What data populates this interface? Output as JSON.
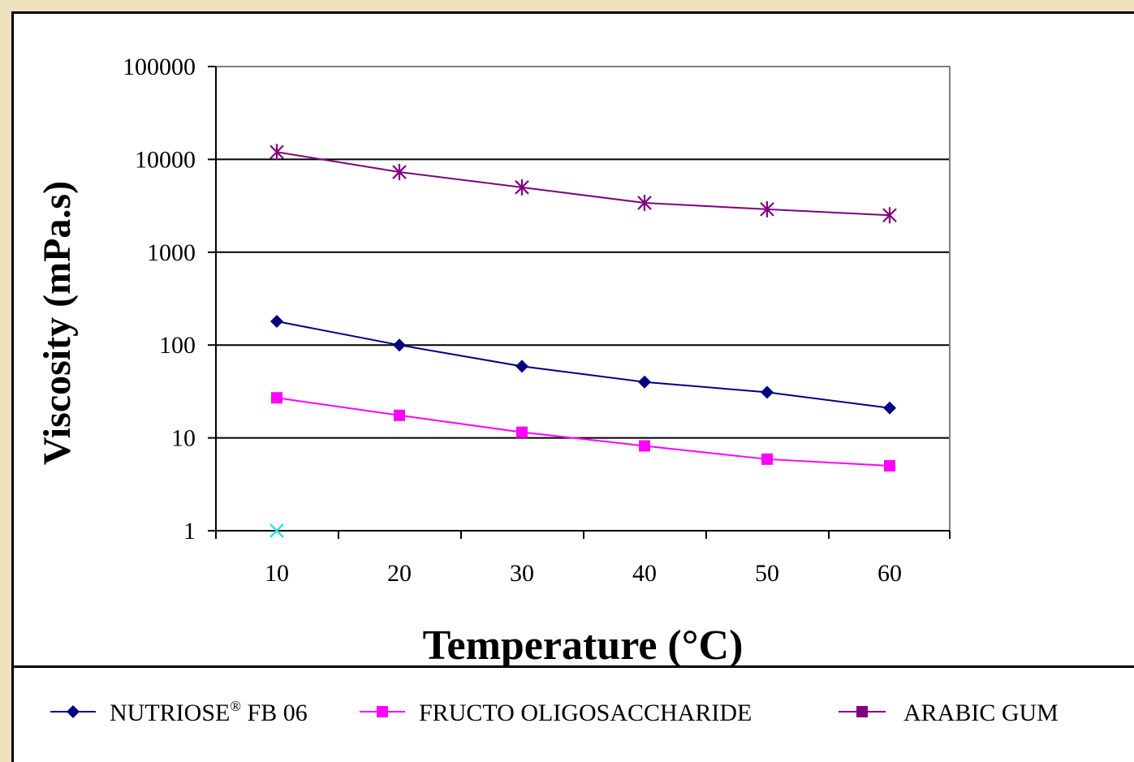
{
  "chart_data": {
    "type": "line",
    "xlabel": "Temperature (°C)",
    "ylabel": "Viscosity (mPa.s)",
    "x": [
      10,
      20,
      30,
      40,
      50,
      60
    ],
    "x_tick_labels": [
      "10",
      "20",
      "30",
      "40",
      "50",
      "60"
    ],
    "y_scale": "log",
    "ylim": [
      1,
      100000
    ],
    "y_tick_labels": [
      "100000",
      "10000",
      "1000",
      "100",
      "10",
      "1"
    ],
    "grid": true,
    "legend_position": "bottom",
    "series": [
      {
        "name": "NUTRIOSE",
        "name_sup": "®",
        "name_suffix": " FB 06",
        "color": "#000080",
        "marker": "diamond",
        "values": [
          180,
          100,
          59,
          40,
          31,
          21
        ]
      },
      {
        "name": "FRUCTO OLIGOSACCHARIDE",
        "color": "#ff00ff",
        "marker": "square",
        "values": [
          27,
          17.5,
          11.5,
          8.2,
          5.9,
          5.0
        ]
      },
      {
        "name": "ARABIC GUM",
        "color": "#800080",
        "marker": "asterisk",
        "values": [
          12000,
          7300,
          5000,
          3400,
          2900,
          2500
        ]
      }
    ],
    "annotations": [
      {
        "type": "point",
        "marker": "x",
        "color": "#33e0e0",
        "x": 10,
        "y": 1
      }
    ]
  }
}
